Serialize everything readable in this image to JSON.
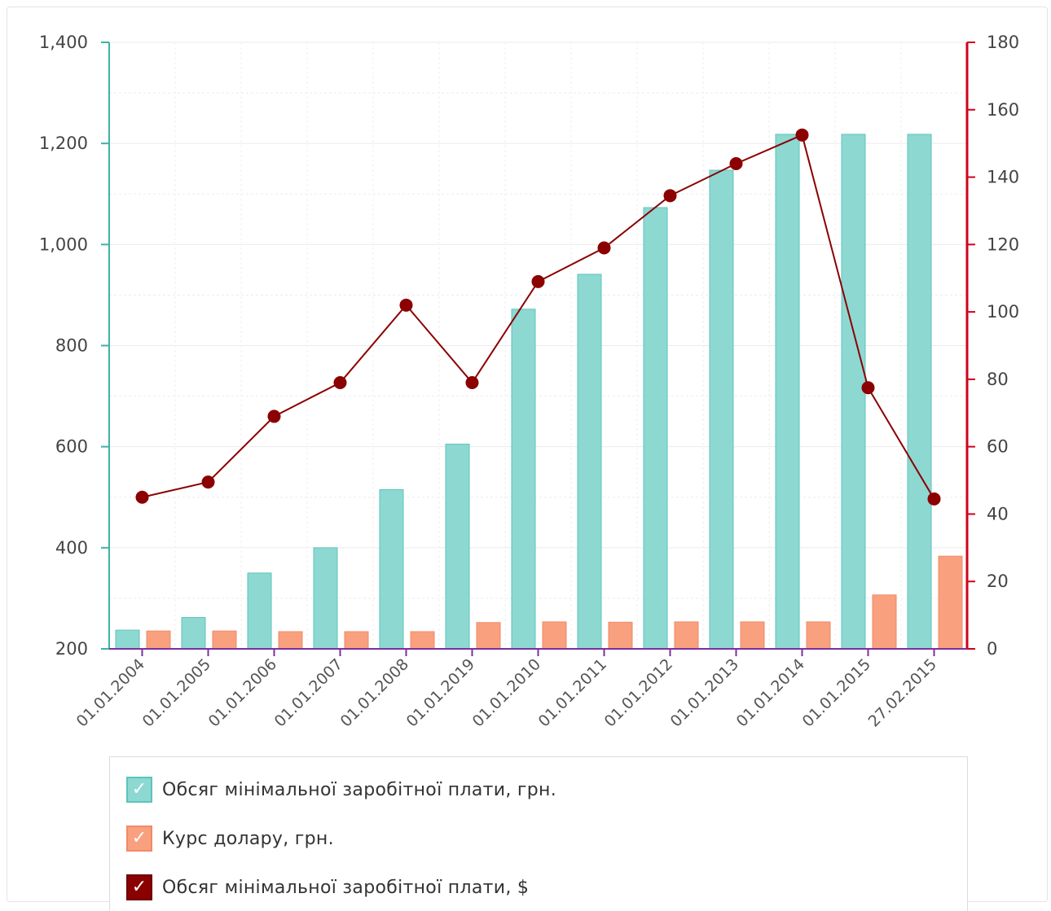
{
  "chart_data": {
    "type": "bar",
    "categories": [
      "01.01.2004",
      "01.01.2005",
      "01.01.2006",
      "01.01.2007",
      "01.01.2008",
      "01.01.2019",
      "01.01.2010",
      "01.01.2011",
      "01.01.2012",
      "01.01.2013",
      "01.01.2014",
      "01.01.2015",
      "27.02.2015"
    ],
    "series": [
      {
        "name": "Обсяг мінімальної заробітної плати, грн.",
        "type": "bar",
        "axis": "left",
        "color": "#8ed8d2",
        "stroke": "#5cc4bb",
        "values": [
          237,
          262,
          350,
          400,
          515,
          605,
          872,
          941,
          1073,
          1147,
          1218,
          1218,
          1218
        ]
      },
      {
        "name": "Курс долару, грн.",
        "type": "bar",
        "axis": "right",
        "color": "#f9a07e",
        "stroke": "#f08a65",
        "values": [
          5.3,
          5.3,
          5.1,
          5.1,
          5.1,
          7.8,
          8.0,
          7.9,
          8.0,
          8.0,
          8.0,
          16.0,
          27.5
        ]
      },
      {
        "name": "Обсяг мінімальної заробітної плати, $",
        "type": "line",
        "axis": "right",
        "color": "#8b0000",
        "values": [
          45,
          49.5,
          69,
          79,
          102,
          79,
          109,
          119,
          134.5,
          144,
          152.5,
          77.5,
          44.5
        ]
      }
    ],
    "left_axis": {
      "ylim": [
        200,
        1400
      ],
      "ticks": [
        "200",
        "400",
        "600",
        "800",
        "1,000",
        "1,200",
        "1,400"
      ],
      "tick_values": [
        200,
        400,
        600,
        800,
        1000,
        1200,
        1400
      ]
    },
    "right_axis": {
      "ylim": [
        0,
        180
      ],
      "ticks": [
        "0",
        "20",
        "40",
        "60",
        "80",
        "100",
        "120",
        "140",
        "160",
        "180"
      ],
      "tick_values": [
        0,
        20,
        40,
        60,
        80,
        100,
        120,
        140,
        160,
        180
      ]
    },
    "grid": true,
    "legend_position": "bottom"
  },
  "legend": {
    "items": [
      {
        "label": "Обсяг мінімальної заробітної плати, грн.",
        "color": "#8ed8d2",
        "border": "#5cc4bb",
        "icon": "check-icon"
      },
      {
        "label": "Курс долару, грн.",
        "color": "#f9a07e",
        "border": "#f08a65",
        "icon": "check-icon"
      },
      {
        "label": "Обсяг мінімальної заробітної плати, $",
        "color": "#8b0000",
        "border": "#6d0000",
        "icon": "check-icon"
      }
    ]
  }
}
